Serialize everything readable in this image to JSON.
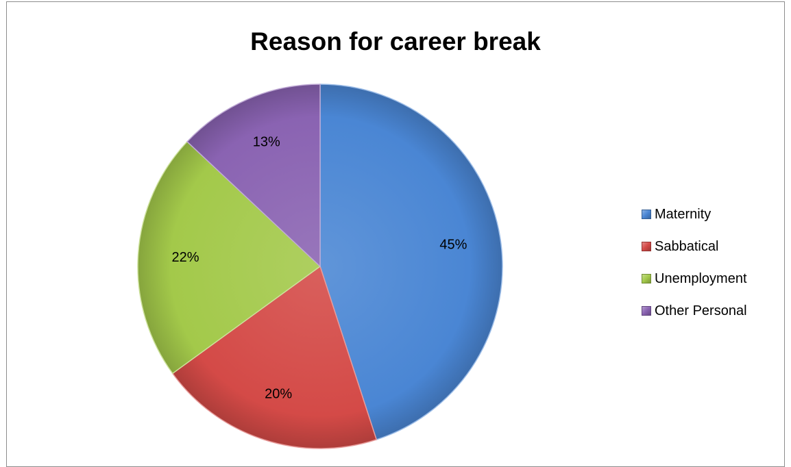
{
  "chart_data": {
    "type": "pie",
    "title": "Reason for career break",
    "categories": [
      "Maternity",
      "Sabbatical",
      "Unemployment",
      "Other Personal"
    ],
    "values": [
      45,
      20,
      22,
      13
    ],
    "data_labels": [
      "45%",
      "20%",
      "22%",
      "13%"
    ],
    "colors": [
      "#4a86d4",
      "#d44a47",
      "#a3c94a",
      "#8a63b2"
    ],
    "legend_position": "right"
  }
}
